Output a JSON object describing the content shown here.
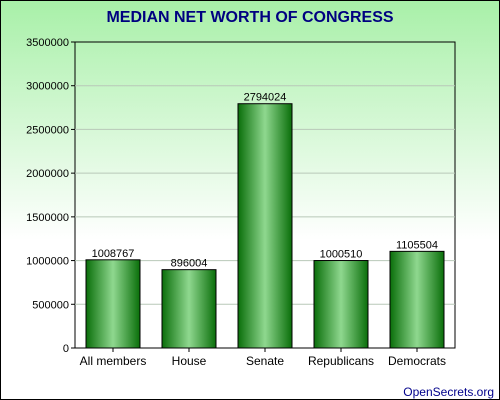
{
  "chart_data": {
    "type": "bar",
    "title": "MEDIAN NET WORTH OF CONGRESS",
    "categories": [
      "All members",
      "House",
      "Senate",
      "Republicans",
      "Democrats"
    ],
    "values": [
      1008767,
      896004,
      2794024,
      1000510,
      1105504
    ],
    "data_labels": [
      "1008767",
      "896004",
      "2794024",
      "1000510",
      "1105504"
    ],
    "ylim": [
      0,
      3500000
    ],
    "yticks": [
      0,
      500000,
      1000000,
      1500000,
      2000000,
      2500000,
      3000000,
      3500000
    ],
    "ytick_labels": [
      "0",
      "500000",
      "1000000",
      "1500000",
      "2000000",
      "2500000",
      "3000000",
      "3500000"
    ],
    "grid": true,
    "xlabel": "",
    "ylabel": ""
  },
  "footer": {
    "source": "OpenSecrets.org"
  },
  "colors": {
    "title": "#000080",
    "frame": "#000000",
    "bar_dark": "#0a6e0a",
    "bar_light": "#8fd88f",
    "bg_gradient_top": "#a8f0a8",
    "bg_gradient_bottom": "#ffffff",
    "footer": "#00008b"
  }
}
